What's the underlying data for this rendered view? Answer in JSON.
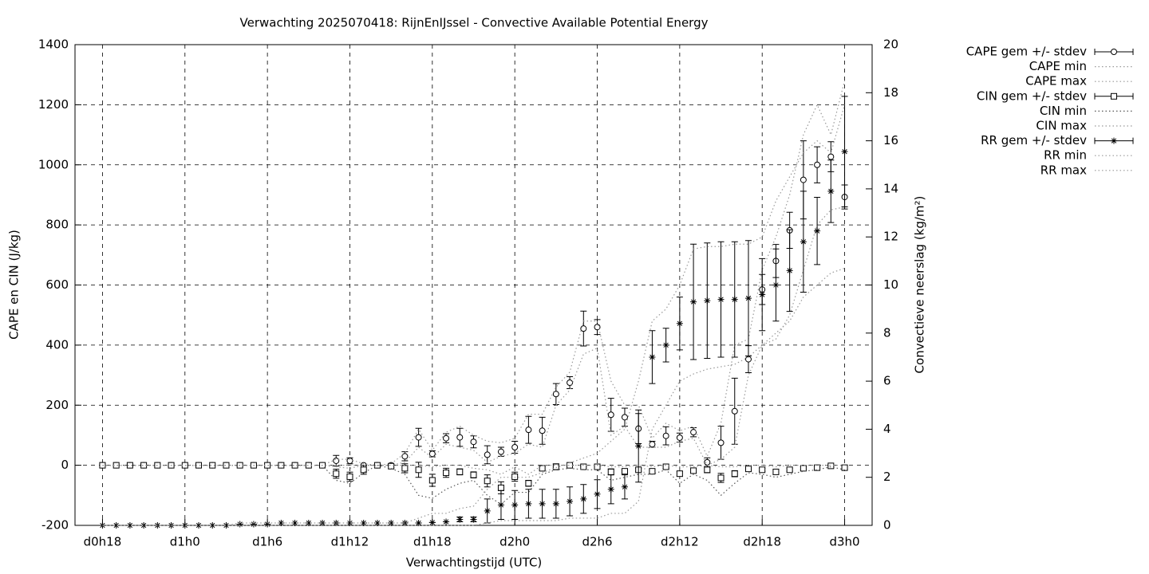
{
  "chart_data": {
    "type": "errorbar-line",
    "title": "Verwachting 2025070418: RijnEnIJssel - Convective Available Potential Energy",
    "x_label": "Verwachtingstijd (UTC)",
    "y_label": "CAPE en CIN (J/kg)",
    "y2_label": "Convectieve neerslag (kg/m²)",
    "x": [
      0,
      1,
      2,
      3,
      4,
      5,
      6,
      7,
      8,
      9,
      10,
      11,
      12,
      13,
      14,
      15,
      16,
      17,
      18,
      19,
      20,
      21,
      22,
      23,
      24,
      25,
      26,
      27,
      28,
      29,
      30,
      31,
      32,
      33,
      34,
      35,
      36,
      37,
      38,
      39,
      40,
      41,
      42,
      43,
      44,
      45,
      46,
      47,
      48,
      49,
      50,
      51,
      52,
      53,
      54
    ],
    "xlim": [
      -2,
      56
    ],
    "xticks": [
      {
        "value": 0,
        "label": "d0h18"
      },
      {
        "value": 6,
        "label": "d1h0"
      },
      {
        "value": 12,
        "label": "d1h6"
      },
      {
        "value": 18,
        "label": "d1h12"
      },
      {
        "value": 24,
        "label": "d1h18"
      },
      {
        "value": 30,
        "label": "d2h0"
      },
      {
        "value": 36,
        "label": "d2h6"
      },
      {
        "value": 42,
        "label": "d2h12"
      },
      {
        "value": 48,
        "label": "d2h18"
      },
      {
        "value": 54,
        "label": "d3h0"
      }
    ],
    "ylim": [
      -200,
      1400
    ],
    "yticks": [
      -200,
      0,
      200,
      400,
      600,
      800,
      1000,
      1200,
      1400
    ],
    "y2lim": [
      0,
      20
    ],
    "y2ticks": [
      0,
      2,
      4,
      6,
      8,
      10,
      12,
      14,
      16,
      18,
      20
    ],
    "grid": true,
    "legend": "outside-top-right",
    "series": [
      {
        "name": "CAPE gem +/- stdev",
        "color": "#000000",
        "style": "errorbars",
        "marker": "circle",
        "axis": "y",
        "values": [
          0,
          0,
          0,
          0,
          0,
          0,
          0,
          0,
          0,
          0,
          0,
          0,
          0,
          0,
          0,
          0,
          0,
          15,
          15,
          0,
          0,
          0,
          30,
          93,
          38,
          90,
          93,
          78,
          35,
          45,
          60,
          118,
          115,
          237,
          275,
          455,
          460,
          168,
          160,
          122,
          70,
          98,
          92,
          110,
          10,
          75,
          180,
          353,
          585,
          680,
          782,
          950,
          1000,
          1027,
          893
        ],
        "errors": [
          0,
          0,
          0,
          0,
          0,
          0,
          0,
          0,
          0,
          0,
          0,
          0,
          0,
          0,
          0,
          0,
          0,
          18,
          10,
          0,
          0,
          0,
          15,
          30,
          10,
          15,
          30,
          20,
          30,
          15,
          20,
          45,
          45,
          35,
          20,
          58,
          25,
          55,
          30,
          50,
          10,
          30,
          15,
          15,
          15,
          55,
          110,
          45,
          50,
          55,
          60,
          130,
          60,
          50,
          40
        ]
      },
      {
        "name": "CAPE min",
        "color": "#999999",
        "style": "dotted",
        "axis": "y",
        "values": [
          0,
          0,
          0,
          0,
          0,
          0,
          0,
          0,
          0,
          0,
          0,
          0,
          0,
          0,
          0,
          0,
          0,
          0,
          0,
          0,
          0,
          0,
          10,
          60,
          25,
          70,
          60,
          50,
          10,
          30,
          40,
          70,
          60,
          200,
          250,
          370,
          390,
          100,
          130,
          60,
          60,
          60,
          80,
          90,
          0,
          20,
          60,
          300,
          400,
          420,
          500,
          650,
          800,
          850,
          860
        ]
      },
      {
        "name": "CAPE max",
        "color": "#999999",
        "style": "dotted",
        "axis": "y",
        "values": [
          0,
          0,
          0,
          0,
          0,
          0,
          0,
          0,
          0,
          0,
          0,
          0,
          0,
          0,
          0,
          0,
          0,
          20,
          20,
          5,
          0,
          5,
          40,
          120,
          50,
          110,
          130,
          100,
          80,
          75,
          90,
          170,
          170,
          260,
          310,
          480,
          480,
          280,
          200,
          200,
          90,
          140,
          115,
          130,
          30,
          140,
          400,
          420,
          650,
          760,
          900,
          1100,
          1200,
          1100,
          1280
        ]
      },
      {
        "name": "CIN gem +/- stdev",
        "color": "#000000",
        "style": "errorbars",
        "marker": "square",
        "axis": "y",
        "values": [
          0,
          0,
          0,
          0,
          0,
          0,
          0,
          0,
          0,
          0,
          0,
          0,
          0,
          0,
          0,
          0,
          0,
          -28,
          -38,
          -15,
          0,
          -3,
          -10,
          -15,
          -50,
          -25,
          -22,
          -32,
          -52,
          -75,
          -38,
          -60,
          -10,
          -5,
          0,
          -5,
          -5,
          -22,
          -20,
          -15,
          -20,
          -5,
          -28,
          -18,
          -15,
          -42,
          -28,
          -12,
          -15,
          -22,
          -15,
          -10,
          -8,
          -2,
          -8
        ],
        "errors": [
          0,
          0,
          0,
          0,
          0,
          0,
          0,
          0,
          0,
          0,
          0,
          0,
          0,
          0,
          0,
          0,
          0,
          15,
          15,
          15,
          0,
          5,
          15,
          25,
          20,
          15,
          10,
          10,
          20,
          20,
          15,
          10,
          5,
          10,
          0,
          0,
          0,
          10,
          5,
          5,
          5,
          5,
          8,
          5,
          10,
          15,
          10,
          5,
          5,
          8,
          5,
          5,
          5,
          3,
          5
        ]
      },
      {
        "name": "CIN min",
        "color": "#555555",
        "style": "dotted",
        "axis": "y",
        "values": [
          0,
          0,
          0,
          0,
          0,
          0,
          0,
          0,
          0,
          0,
          0,
          0,
          0,
          0,
          0,
          0,
          0,
          -50,
          -60,
          -25,
          0,
          -10,
          -30,
          -100,
          -110,
          -80,
          -60,
          -50,
          -100,
          -130,
          -90,
          -90,
          -30,
          -15,
          -10,
          -15,
          -15,
          -50,
          -40,
          -30,
          -30,
          -15,
          -60,
          -30,
          -50,
          -100,
          -60,
          -25,
          -30,
          -40,
          -30,
          -20,
          -15,
          -5,
          -15
        ]
      },
      {
        "name": "CIN max",
        "color": "#999999",
        "style": "dotted",
        "axis": "y",
        "values": [
          0,
          0,
          0,
          0,
          0,
          0,
          0,
          0,
          0,
          0,
          0,
          0,
          0,
          0,
          0,
          0,
          0,
          -5,
          -10,
          0,
          0,
          0,
          0,
          0,
          -5,
          0,
          0,
          -10,
          -15,
          -30,
          -5,
          -30,
          0,
          0,
          0,
          0,
          0,
          -5,
          -5,
          0,
          -5,
          0,
          -5,
          -5,
          0,
          -5,
          -5,
          0,
          0,
          -5,
          0,
          0,
          0,
          0,
          0
        ]
      },
      {
        "name": "RR gem +/- stdev",
        "color": "#000000",
        "style": "errorbars",
        "marker": "star",
        "axis": "y2",
        "values": [
          0,
          0,
          0,
          0,
          0,
          0,
          0,
          0,
          0,
          0,
          0.05,
          0.05,
          0.05,
          0.1,
          0.1,
          0.1,
          0.1,
          0.1,
          0.1,
          0.1,
          0.1,
          0.1,
          0.1,
          0.1,
          0.12,
          0.15,
          0.25,
          0.25,
          0.6,
          0.85,
          0.85,
          0.9,
          0.9,
          0.9,
          1.0,
          1.1,
          1.3,
          1.5,
          1.6,
          3.3,
          7.0,
          7.5,
          8.4,
          9.3,
          9.35,
          9.4,
          9.4,
          9.45,
          9.6,
          10.0,
          10.6,
          11.8,
          12.25,
          13.9,
          15.55
        ],
        "errors": [
          0,
          0,
          0,
          0,
          0,
          0,
          0,
          0,
          0,
          0,
          0,
          0,
          0,
          0,
          0,
          0,
          0,
          0,
          0,
          0,
          0,
          0,
          0,
          0,
          0,
          0,
          0.1,
          0.1,
          0.5,
          0.6,
          0.6,
          0.6,
          0.6,
          0.6,
          0.6,
          0.6,
          0.6,
          0.6,
          0.5,
          1.5,
          1.1,
          0.7,
          1.1,
          2.4,
          2.4,
          2.4,
          2.4,
          2.4,
          1.5,
          1.5,
          1.7,
          2.1,
          1.4,
          1.3,
          2.3
        ]
      },
      {
        "name": "RR min",
        "color": "#999999",
        "style": "dotted",
        "axis": "y2",
        "values": [
          0,
          0,
          0,
          0,
          0,
          0,
          0,
          0,
          0,
          0,
          0,
          0,
          0,
          0,
          0,
          0,
          0,
          0,
          0,
          0,
          0,
          0,
          0,
          0,
          0,
          0,
          0,
          0,
          0.1,
          0.2,
          0.2,
          0.2,
          0.2,
          0.2,
          0.3,
          0.3,
          0.3,
          0.5,
          0.5,
          1.0,
          4.0,
          5.0,
          6.0,
          6.3,
          6.5,
          6.6,
          6.7,
          7.0,
          7.5,
          8.0,
          8.5,
          9.5,
          10.0,
          10.5,
          10.7
        ]
      },
      {
        "name": "RR max",
        "color": "#999999",
        "style": "dotted",
        "axis": "y2",
        "values": [
          0,
          0,
          0,
          0,
          0,
          0,
          0,
          0,
          0,
          0,
          0.1,
          0.1,
          0.1,
          0.1,
          0.1,
          0.1,
          0.1,
          0.1,
          0.1,
          0.1,
          0.1,
          0.1,
          0.1,
          0.3,
          0.5,
          0.5,
          0.7,
          0.8,
          1.5,
          2.0,
          2.0,
          2.0,
          2.2,
          2.4,
          2.6,
          2.8,
          3.0,
          3.5,
          4.0,
          6.0,
          8.5,
          9.0,
          10.0,
          11.5,
          11.6,
          11.6,
          11.7,
          11.7,
          12.0,
          13.5,
          14.5,
          15.5,
          16.0,
          15.5,
          17.5
        ]
      }
    ]
  }
}
